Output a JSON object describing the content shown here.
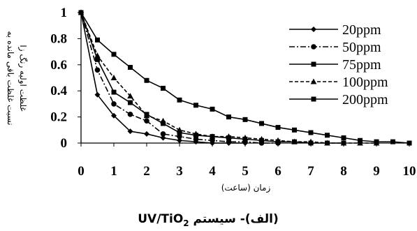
{
  "chart_data": {
    "type": "line",
    "title": "",
    "xlabel": "زمان (ساعت)",
    "ylabel_lines": [
      "نسبت غلظت باقی مانده به",
      "غلظت اولیه رنگ زا"
    ],
    "xlim": [
      0,
      10
    ],
    "ylim": [
      0,
      1
    ],
    "x_ticks": [
      "0",
      "1",
      "2",
      "3",
      "4",
      "5",
      "6",
      "7",
      "8",
      "9",
      "10"
    ],
    "y_ticks": [
      "0",
      "0.2",
      "0.4",
      "0.6",
      "0.8",
      "1"
    ],
    "grid": false,
    "legend_position": "top-right",
    "caption_prefix": "(الف)- سیستم ",
    "caption_main": "UV/TiO",
    "caption_subscript": "2",
    "series": [
      {
        "name": "20ppm",
        "marker": "diamond",
        "dash": "solid",
        "x": [
          0,
          0.5,
          1,
          1.5,
          2,
          2.5,
          3,
          3.5,
          4,
          4.5,
          5
        ],
        "y": [
          1,
          0.37,
          0.21,
          0.09,
          0.07,
          0.04,
          0.02,
          0.01,
          0.0,
          0.0,
          0.0
        ]
      },
      {
        "name": "50ppm",
        "marker": "circle",
        "dash": "dashdot",
        "x": [
          0,
          0.5,
          1,
          1.5,
          2,
          2.5,
          3,
          3.5,
          4,
          4.5,
          5,
          5.5,
          6
        ],
        "y": [
          1,
          0.56,
          0.3,
          0.22,
          0.17,
          0.07,
          0.05,
          0.03,
          0.02,
          0.01,
          0.01,
          0.0,
          0.0
        ]
      },
      {
        "name": "75ppm",
        "marker": "square",
        "dash": "solid",
        "x": [
          0,
          0.5,
          1,
          1.5,
          2,
          2.5,
          3,
          3.5,
          4,
          4.5,
          5,
          5.5,
          6,
          6.5,
          7,
          7.5,
          8
        ],
        "y": [
          1,
          0.64,
          0.39,
          0.31,
          0.22,
          0.15,
          0.08,
          0.06,
          0.05,
          0.04,
          0.03,
          0.02,
          0.01,
          0.01,
          0.0,
          0.0,
          0.0
        ]
      },
      {
        "name": "100ppm",
        "marker": "triangle",
        "dash": "dashed",
        "x": [
          0,
          0.5,
          1,
          1.5,
          2,
          2.5,
          3,
          3.5,
          4,
          4.5,
          5,
          5.5,
          6,
          6.5,
          7,
          7.5,
          8,
          8.5,
          9
        ],
        "y": [
          1,
          0.67,
          0.5,
          0.36,
          0.21,
          0.17,
          0.1,
          0.07,
          0.05,
          0.05,
          0.04,
          0.03,
          0.02,
          0.01,
          0.01,
          0.0,
          0.0,
          0.0,
          0.0
        ]
      },
      {
        "name": "200ppm",
        "marker": "square",
        "dash": "solid",
        "x": [
          0,
          0.5,
          1,
          1.5,
          2,
          2.5,
          3,
          3.5,
          4,
          4.5,
          5,
          5.5,
          6,
          6.5,
          7,
          7.5,
          8,
          8.5,
          9,
          9.5,
          10
        ],
        "y": [
          1,
          0.79,
          0.68,
          0.58,
          0.48,
          0.42,
          0.33,
          0.29,
          0.26,
          0.2,
          0.18,
          0.15,
          0.12,
          0.1,
          0.08,
          0.06,
          0.04,
          0.02,
          0.01,
          0.01,
          0.0
        ]
      }
    ]
  }
}
